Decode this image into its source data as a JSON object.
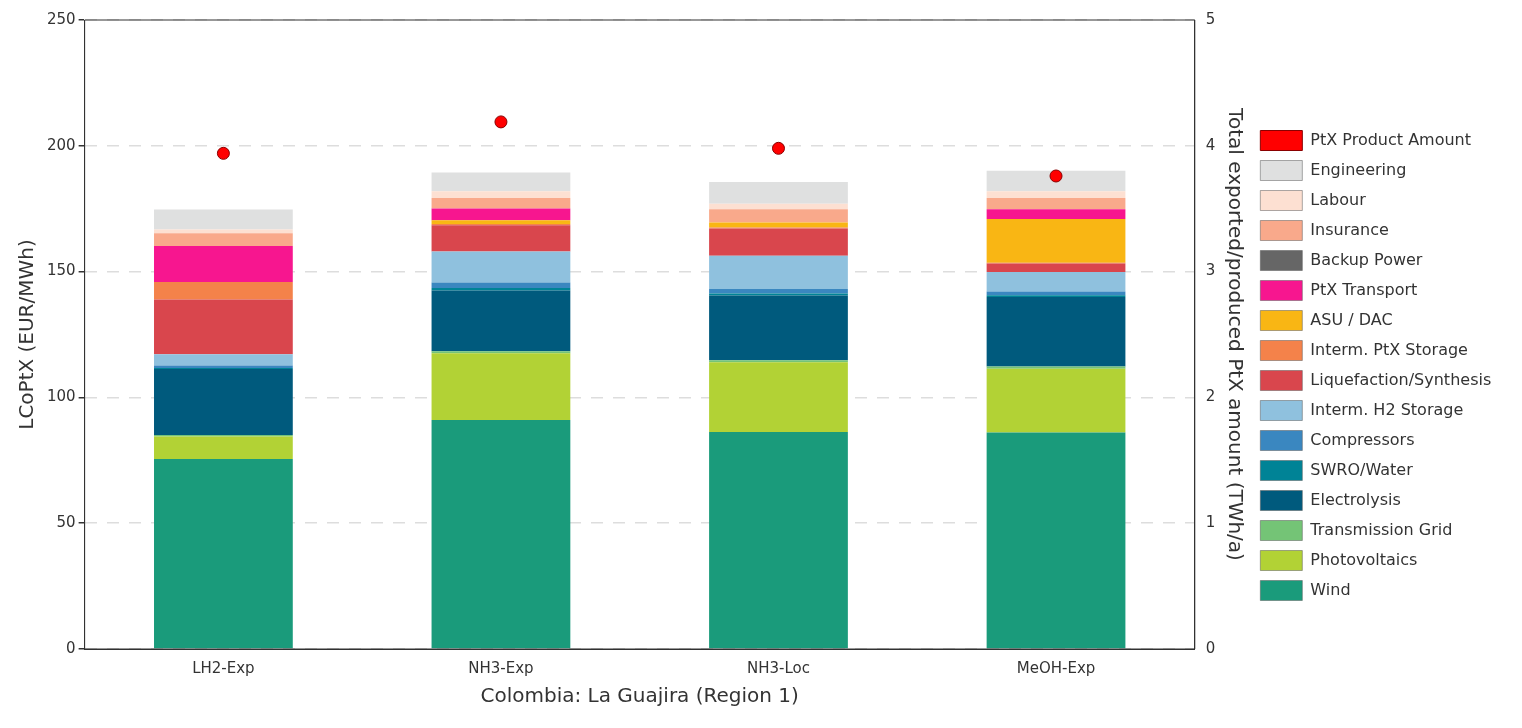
{
  "chart_data": {
    "type": "bar",
    "stacked": true,
    "xlabel": "Colombia: La Guajira (Region 1)",
    "ylabel": "LCoPtX (EUR/MWh)",
    "y2label": "Total exported/produced PtX amount (TWh/a)",
    "categories": [
      "LH2-Exp",
      "NH3-Exp",
      "NH3-Loc",
      "MeOH-Exp"
    ],
    "ylim": [
      0,
      250
    ],
    "yticks": [
      0,
      50,
      100,
      150,
      200,
      250
    ],
    "y2lim": [
      0,
      5
    ],
    "y2ticks": [
      0,
      1,
      2,
      3,
      4,
      5
    ],
    "grid": "y",
    "legend": "right",
    "series": [
      {
        "name": "Wind",
        "color": "#1a9b7b",
        "values": [
          75.5,
          91,
          86.2,
          86
        ]
      },
      {
        "name": "Photovoltaics",
        "color": "#b2d235",
        "values": [
          9,
          26.5,
          27.8,
          25.4
        ]
      },
      {
        "name": "Transmission Grid",
        "color": "#74c476",
        "values": [
          0.6,
          0.8,
          0.8,
          0.9
        ]
      },
      {
        "name": "Electrolysis",
        "color": "#005a7d",
        "values": [
          26.2,
          24.2,
          25.7,
          27.6
        ]
      },
      {
        "name": "SWRO/Water",
        "color": "#008396",
        "values": [
          0.4,
          1,
          0.8,
          0.7
        ]
      },
      {
        "name": "Compressors",
        "color": "#3a87c0",
        "values": [
          1,
          2.2,
          1.8,
          1.5
        ]
      },
      {
        "name": "Interm. H2 Storage",
        "color": "#8fc1de",
        "values": [
          4.5,
          12.3,
          13.2,
          7.7
        ]
      },
      {
        "name": "Liquefaction/Synthesis",
        "color": "#d9464d",
        "values": [
          21.7,
          10.4,
          10.8,
          3.4
        ]
      },
      {
        "name": "Interm. PtX Storage",
        "color": "#f4824a",
        "values": [
          7,
          0.5,
          0.4,
          0.3
        ]
      },
      {
        "name": "ASU / DAC",
        "color": "#f9b614",
        "values": [
          0,
          1.5,
          2,
          17.4
        ]
      },
      {
        "name": "PtX Transport",
        "color": "#f7168f",
        "values": [
          14.3,
          4.7,
          0,
          3.9
        ]
      },
      {
        "name": "Backup Power",
        "color": "#666666",
        "values": [
          0,
          0,
          0,
          0
        ]
      },
      {
        "name": "Insurance",
        "color": "#f9a98b",
        "values": [
          5,
          4.2,
          5.3,
          4.5
        ]
      },
      {
        "name": "Labour",
        "color": "#fde0d2",
        "values": [
          1.5,
          2.6,
          2.2,
          2.6
        ]
      },
      {
        "name": "Engineering",
        "color": "#dfe0e0",
        "values": [
          8,
          7.5,
          8.6,
          8.2
        ]
      },
      {
        "name": "PtX Product Amount",
        "type": "scatter",
        "axis": "y2",
        "marker": "circle",
        "color": "#ff0000",
        "x": [
          "LH2-Exp",
          "NH3-Exp",
          "NH3-Loc",
          "MeOH-Exp"
        ],
        "values": [
          3.94,
          4.19,
          3.98,
          3.76
        ]
      }
    ]
  }
}
